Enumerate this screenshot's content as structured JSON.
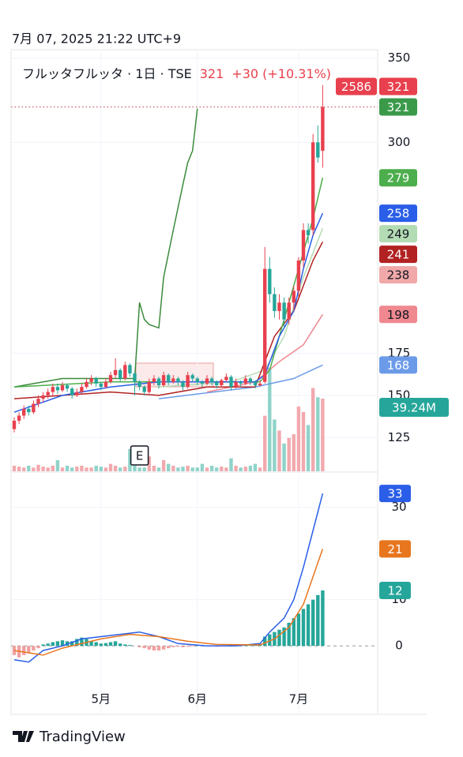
{
  "chart_data": {
    "type": "candlestick",
    "date": "7月 07, 2025 21:22 UTC+9",
    "symbol_label": "フルッタフルッタ · 1日 · TSE",
    "last": 321,
    "change": "+30 (+10.31%)",
    "code": "2586",
    "brand": "TradingView",
    "up_color": "#e8404e",
    "down_color": "#26a69a",
    "volume_up_color": "#f2a9ae",
    "volume_down_color": "#8fd3c9",
    "ylim": [
      105,
      354
    ],
    "yticks": [
      125,
      150,
      175,
      300,
      350
    ],
    "grid": true,
    "categories": [
      null,
      null,
      null,
      null,
      null,
      null,
      null,
      null,
      null,
      null,
      null,
      null,
      null,
      null,
      null,
      null,
      null,
      null,
      "5月",
      null,
      null,
      null,
      null,
      null,
      null,
      null,
      null,
      null,
      null,
      null,
      null,
      null,
      null,
      null,
      null,
      null,
      null,
      null,
      "6月",
      null,
      null,
      null,
      null,
      null,
      null,
      null,
      null,
      null,
      null,
      null,
      null,
      null,
      null,
      null,
      null,
      null,
      null,
      null,
      null,
      "7月",
      null,
      null,
      null,
      null,
      null
    ],
    "candles": [
      [
        130,
        137,
        128,
        135
      ],
      [
        135,
        140,
        133,
        138
      ],
      [
        138,
        144,
        136,
        142
      ],
      [
        142,
        144,
        138,
        140
      ],
      [
        140,
        147,
        139,
        145
      ],
      [
        145,
        150,
        143,
        148
      ],
      [
        148,
        152,
        146,
        150
      ],
      [
        150,
        154,
        148,
        152
      ],
      [
        152,
        157,
        150,
        155
      ],
      [
        155,
        157,
        151,
        153
      ],
      [
        153,
        158,
        152,
        156
      ],
      [
        156,
        157,
        152,
        154
      ],
      [
        154,
        155,
        148,
        150
      ],
      [
        150,
        154,
        149,
        152
      ],
      [
        152,
        157,
        151,
        155
      ],
      [
        155,
        160,
        154,
        158
      ],
      [
        158,
        162,
        156,
        160
      ],
      [
        160,
        161,
        155,
        157
      ],
      [
        157,
        158,
        153,
        155
      ],
      [
        155,
        160,
        154,
        158
      ],
      [
        158,
        164,
        157,
        162
      ],
      [
        162,
        172,
        160,
        165
      ],
      [
        165,
        166,
        158,
        160
      ],
      [
        160,
        170,
        159,
        168
      ],
      [
        168,
        169,
        161,
        163
      ],
      [
        163,
        164,
        150,
        158
      ],
      [
        158,
        159,
        153,
        155
      ],
      [
        155,
        156,
        150,
        152
      ],
      [
        152,
        160,
        151,
        158
      ],
      [
        158,
        162,
        156,
        160
      ],
      [
        160,
        161,
        154,
        156
      ],
      [
        156,
        164,
        155,
        162
      ],
      [
        162,
        163,
        156,
        158
      ],
      [
        158,
        162,
        157,
        160
      ],
      [
        160,
        161,
        156,
        158
      ],
      [
        158,
        159,
        153,
        155
      ],
      [
        155,
        164,
        154,
        162
      ],
      [
        162,
        163,
        158,
        160
      ],
      [
        160,
        161,
        156,
        158
      ],
      [
        158,
        159,
        155,
        157
      ],
      [
        157,
        162,
        156,
        160
      ],
      [
        160,
        161,
        156,
        158
      ],
      [
        158,
        159,
        154,
        156
      ],
      [
        156,
        160,
        155,
        159
      ],
      [
        159,
        163,
        158,
        161
      ],
      [
        161,
        162,
        153,
        155
      ],
      [
        155,
        160,
        154,
        158
      ],
      [
        158,
        159,
        155,
        157
      ],
      [
        157,
        162,
        156,
        160
      ],
      [
        160,
        161,
        156,
        158
      ],
      [
        158,
        159,
        154,
        156
      ],
      [
        156,
        159,
        155,
        157
      ],
      [
        158,
        238,
        157,
        225
      ],
      [
        225,
        232,
        205,
        210
      ],
      [
        210,
        214,
        196,
        200
      ],
      [
        200,
        210,
        195,
        205
      ],
      [
        205,
        208,
        190,
        195
      ],
      [
        195,
        208,
        192,
        205
      ],
      [
        205,
        215,
        200,
        212
      ],
      [
        212,
        232,
        208,
        230
      ],
      [
        230,
        252,
        226,
        248
      ],
      [
        248,
        252,
        240,
        245
      ],
      [
        248,
        305,
        245,
        300
      ],
      [
        300,
        310,
        288,
        291
      ],
      [
        295,
        334,
        285,
        321
      ]
    ],
    "volume": [
      3,
      2.5,
      2,
      3,
      2,
      3.5,
      2.5,
      2,
      3,
      6,
      2,
      3,
      2,
      2.5,
      3,
      2,
      2,
      3,
      2.5,
      2,
      4,
      3,
      2,
      2.5,
      12,
      3,
      2,
      2,
      8,
      3,
      2,
      6,
      4,
      3,
      2,
      2.5,
      3,
      2,
      2,
      4,
      2,
      3,
      2,
      2.5,
      2,
      7,
      3,
      2,
      2.5,
      3,
      4,
      2,
      30,
      56,
      28,
      22,
      15,
      18,
      20,
      35,
      32,
      25,
      45,
      40,
      39.24
    ],
    "volume_ylim": [
      0,
      227
    ],
    "volume_badge": {
      "value": 39.24,
      "label": "39.24M",
      "color": "#26a69a"
    },
    "events": [
      {
        "x": 26,
        "label": "E"
      }
    ],
    "lines": [
      {
        "color": "#3a8a3a",
        "x": [
          0,
          10,
          20,
          25,
          26,
          27,
          28,
          30,
          31,
          33,
          35,
          36,
          37,
          38
        ],
        "values": [
          155,
          160,
          160,
          160,
          205,
          195,
          192,
          190,
          220,
          248,
          275,
          288,
          295,
          320
        ]
      },
      {
        "color": "#6b9be8",
        "x": [
          30,
          50,
          58,
          64
        ],
        "values": [
          148,
          155,
          160,
          168
        ]
      },
      {
        "color": "#f08890",
        "x": [
          40,
          50,
          55,
          60,
          64
        ],
        "values": [
          152,
          158,
          170,
          180,
          198
        ]
      },
      {
        "color": "#b4dcb4",
        "x": [
          30,
          45,
          52,
          56,
          60,
          64
        ],
        "values": [
          155,
          158,
          165,
          185,
          220,
          249
        ]
      },
      {
        "color": "#b22222",
        "x": [
          0,
          10,
          20,
          30,
          40,
          50,
          54,
          58,
          60,
          62,
          64
        ],
        "values": [
          148,
          150,
          152,
          150,
          155,
          155,
          185,
          200,
          215,
          230,
          241
        ]
      },
      {
        "color": "#4cae4c",
        "x": [
          0,
          20,
          40,
          51,
          53,
          56,
          60,
          62,
          64
        ],
        "values": [
          155,
          158,
          158,
          158,
          165,
          195,
          235,
          255,
          279
        ]
      },
      {
        "color": "#2a5ee8",
        "x": [
          0,
          10,
          20,
          30,
          40,
          50,
          52,
          55,
          58,
          60,
          62,
          64
        ],
        "values": [
          140,
          150,
          155,
          158,
          158,
          158,
          162,
          185,
          200,
          225,
          245,
          258
        ]
      }
    ],
    "badges": [
      {
        "value": 321,
        "color": "#e8404e"
      },
      {
        "value": 321,
        "color": "#3a9a4a"
      },
      {
        "value": 279,
        "color": "#4cae4c"
      },
      {
        "value": 258,
        "color": "#2a5ee8"
      },
      {
        "value": 249,
        "color": "#b4dcb4"
      },
      {
        "value": 241,
        "color": "#b22222"
      },
      {
        "value": 238,
        "color": "#f0a8a8"
      },
      {
        "value": 198,
        "color": "#f08890"
      },
      {
        "value": 168,
        "color": "#6b9be8"
      }
    ],
    "macd": {
      "ylim": [
        -8,
        37.3
      ],
      "yticks": [
        0,
        10,
        30
      ],
      "pos_color": "#26a69a",
      "neg_color": "#f0a0a0",
      "histogram": [
        -2,
        -2.5,
        -2,
        -1.5,
        -1,
        -0.5,
        0.3,
        0.5,
        0.8,
        1,
        1.2,
        1,
        1,
        1.5,
        1.8,
        1.5,
        1,
        0.8,
        0.5,
        0.6,
        0.8,
        1,
        0.5,
        0.3,
        0.2,
        0,
        -0.3,
        -0.5,
        -0.8,
        -1,
        -1,
        -0.8,
        -0.5,
        -0.3,
        -0.2,
        -0.3,
        -0.2,
        -0.1,
        0.1,
        0.2,
        0.1,
        -0.1,
        -0.2,
        -0.1,
        0.1,
        0.2,
        0.1,
        0.2,
        0.1,
        0.2,
        0.3,
        0.4,
        2,
        2.5,
        3,
        3.5,
        4,
        5,
        6,
        7,
        8,
        9,
        10,
        11,
        12
      ],
      "lines": [
        {
          "color": "#2a5ee8",
          "x": [
            0,
            3,
            6,
            10,
            14,
            18,
            22,
            26,
            30,
            34,
            40,
            46,
            51,
            53,
            56,
            58,
            60,
            62,
            64
          ],
          "values": [
            -3,
            -3.5,
            -1,
            0,
            1.5,
            2,
            2.5,
            3,
            2,
            0.5,
            0,
            0,
            0.5,
            3,
            6,
            10,
            17,
            25,
            33
          ]
        },
        {
          "color": "#e8761e",
          "x": [
            0,
            6,
            10,
            18,
            24,
            30,
            36,
            42,
            51,
            54,
            57,
            60,
            62,
            64
          ],
          "values": [
            -1,
            -2,
            -0.5,
            1.5,
            2.5,
            2,
            1,
            0.3,
            0.2,
            1.5,
            4,
            9,
            15,
            21
          ]
        }
      ],
      "badges": [
        {
          "value": 33,
          "color": "#2a5ee8"
        },
        {
          "value": 21,
          "color": "#e8761e"
        },
        {
          "value": 12,
          "color": "#26a69a"
        }
      ]
    }
  }
}
